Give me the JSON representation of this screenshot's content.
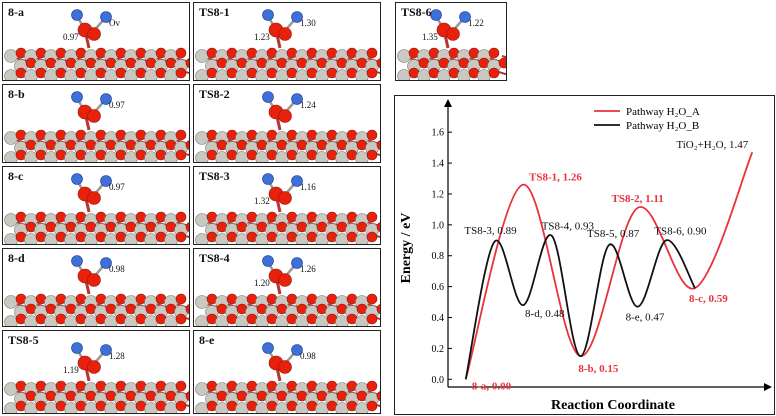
{
  "panels": [
    {
      "id": "p-8a",
      "label": "8-a",
      "notes": [
        "Ov",
        "0.97"
      ]
    },
    {
      "id": "p-ts81",
      "label": "TS8-1",
      "notes": [
        "1.30",
        "1.23"
      ]
    },
    {
      "id": "p-ts86",
      "label": "TS8-6",
      "notes": [
        "1.22",
        "1.35"
      ]
    },
    {
      "id": "p-8b",
      "label": "8-b",
      "notes": [
        "0.97"
      ]
    },
    {
      "id": "p-ts82",
      "label": "TS8-2",
      "notes": [
        "1.24"
      ]
    },
    {
      "id": "p-8c",
      "label": "8-c",
      "notes": [
        "0.97"
      ]
    },
    {
      "id": "p-ts83",
      "label": "TS8-3",
      "notes": [
        "1.16",
        "1.32"
      ]
    },
    {
      "id": "p-8d",
      "label": "8-d",
      "notes": [
        "0.98"
      ]
    },
    {
      "id": "p-ts84",
      "label": "TS8-4",
      "notes": [
        "1.26",
        "1.20"
      ]
    },
    {
      "id": "p-ts85",
      "label": "TS8-5",
      "notes": [
        "1.28",
        "1.19"
      ]
    },
    {
      "id": "p-8e",
      "label": "8-e",
      "notes": [
        "0.98"
      ]
    }
  ],
  "colors": {
    "pathway_a": "#e8323c",
    "pathway_b": "#111111",
    "oxygen": "#e8200c",
    "titanium": "#c9c9c2",
    "hydrogen": "#3f6fd8"
  },
  "chart_data": {
    "type": "line",
    "xlabel": "Reaction Coordinate",
    "ylabel": "Energy / eV",
    "ylim": [
      -0.05,
      1.75
    ],
    "yticks": [
      "0.0",
      "0.2",
      "0.4",
      "0.6",
      "0.8",
      "1.0",
      "1.2",
      "1.4",
      "1.6"
    ],
    "grid": false,
    "legend_position": "top-right",
    "series": [
      {
        "name": "Pathway H₂O_A",
        "color": "#e8323c",
        "x": [
          0,
          1,
          2,
          3,
          4,
          5
        ],
        "values": [
          0.0,
          1.26,
          0.15,
          1.11,
          0.59,
          1.47
        ]
      },
      {
        "name": "Pathway H₂O_B",
        "color": "#111111",
        "x": [
          0,
          0.5,
          1,
          1.5,
          2,
          2.5,
          3,
          3.5,
          4
        ],
        "values": [
          0.0,
          0.89,
          0.48,
          0.93,
          0.15,
          0.87,
          0.47,
          0.9,
          0.59
        ]
      }
    ],
    "annotations": [
      {
        "text": "8-a, 0.00",
        "color": "red",
        "x": 0,
        "y": 0.0
      },
      {
        "text": "TS8-1, 1.26",
        "color": "red",
        "x": 1,
        "y": 1.26
      },
      {
        "text": "8-b, 0.15",
        "color": "red",
        "x": 2,
        "y": 0.15
      },
      {
        "text": "TS8-2, 1.11",
        "color": "red",
        "x": 3,
        "y": 1.11
      },
      {
        "text": "8-c, 0.59",
        "color": "red",
        "x": 4,
        "y": 0.59
      },
      {
        "text": "TiO₂+H₂O, 1.47",
        "color": "black",
        "x": 5,
        "y": 1.47
      },
      {
        "text": "TS8-3, 0.89",
        "color": "black",
        "x": 0.5,
        "y": 0.89
      },
      {
        "text": "8-d, 0.48",
        "color": "black",
        "x": 1,
        "y": 0.48
      },
      {
        "text": "TS8-4, 0.93",
        "color": "black",
        "x": 1.5,
        "y": 0.93
      },
      {
        "text": "TS8-5, 0.87",
        "color": "black",
        "x": 2.5,
        "y": 0.87
      },
      {
        "text": "8-e, 0.47",
        "color": "black",
        "x": 3,
        "y": 0.47
      },
      {
        "text": "TS8-6, 0.90",
        "color": "black",
        "x": 3.5,
        "y": 0.9
      }
    ]
  }
}
